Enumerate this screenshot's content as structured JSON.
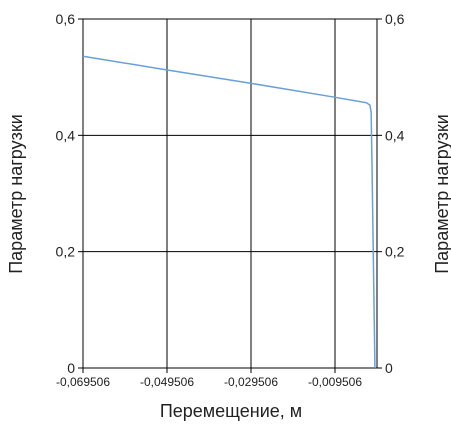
{
  "chart_data": {
    "type": "line",
    "xlabel": "Перемещение, м",
    "ylabel_left": "Параметр нагрузки",
    "ylabel_right": "Параметр нагрузки",
    "xlim": [
      -0.069506,
      0.000494
    ],
    "ylim": [
      0,
      0.6
    ],
    "x_ticks": [
      -0.069506,
      -0.049506,
      -0.029506,
      -0.009506
    ],
    "x_tick_labels": [
      "-0,069506",
      "-0,049506",
      "-0,029506",
      "-0,009506"
    ],
    "y_ticks": [
      0,
      0.2,
      0.4,
      0.6
    ],
    "y_tick_labels": [
      "0",
      "0,2",
      "0,4",
      "0,6"
    ],
    "grid": true,
    "line_color": "#6a9fd8",
    "series": [
      {
        "x": [
          -0.069506,
          -0.05,
          -0.03,
          -0.01,
          -0.002,
          -0.0012,
          -0.0009,
          -0.0007,
          -0.0005,
          -0.0003,
          -0.0001,
          0.0
        ],
        "y": [
          0.536,
          0.513,
          0.49,
          0.466,
          0.456,
          0.452,
          0.44,
          0.35,
          0.25,
          0.15,
          0.05,
          0.0
        ]
      }
    ]
  }
}
